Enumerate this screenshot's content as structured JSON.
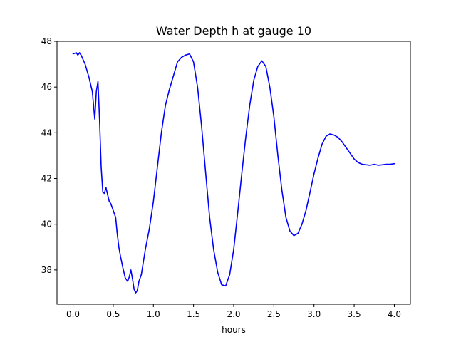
{
  "chart_data": {
    "type": "line",
    "title": "Water Depth h at gauge 10",
    "xlabel": "hours",
    "ylabel": "",
    "xlim": [
      -0.2,
      4.2
    ],
    "ylim": [
      36.5,
      48.0
    ],
    "xticks": [
      0.0,
      0.5,
      1.0,
      1.5,
      2.0,
      2.5,
      3.0,
      3.5,
      4.0
    ],
    "xtick_labels": [
      "0.0",
      "0.5",
      "1.0",
      "1.5",
      "2.0",
      "2.5",
      "3.0",
      "3.5",
      "4.0"
    ],
    "yticks": [
      38,
      40,
      42,
      44,
      46,
      48
    ],
    "ytick_labels": [
      "38",
      "40",
      "42",
      "44",
      "46",
      "48"
    ],
    "grid": false,
    "series": [
      {
        "color": "#0000ff",
        "x": [
          0.0,
          0.04,
          0.06,
          0.08,
          0.1,
          0.15,
          0.2,
          0.24,
          0.27,
          0.29,
          0.31,
          0.33,
          0.35,
          0.37,
          0.39,
          0.41,
          0.43,
          0.45,
          0.47,
          0.5,
          0.53,
          0.55,
          0.57,
          0.59,
          0.62,
          0.65,
          0.68,
          0.7,
          0.72,
          0.74,
          0.76,
          0.78,
          0.8,
          0.82,
          0.85,
          0.9,
          0.95,
          1.0,
          1.05,
          1.1,
          1.15,
          1.2,
          1.25,
          1.3,
          1.35,
          1.4,
          1.45,
          1.5,
          1.55,
          1.6,
          1.65,
          1.7,
          1.75,
          1.8,
          1.85,
          1.9,
          1.95,
          2.0,
          2.05,
          2.1,
          2.15,
          2.2,
          2.25,
          2.3,
          2.35,
          2.4,
          2.45,
          2.5,
          2.55,
          2.6,
          2.65,
          2.7,
          2.75,
          2.8,
          2.85,
          2.9,
          2.95,
          3.0,
          3.05,
          3.1,
          3.15,
          3.2,
          3.25,
          3.3,
          3.35,
          3.4,
          3.45,
          3.5,
          3.55,
          3.6,
          3.65,
          3.7,
          3.75,
          3.8,
          3.85,
          3.9,
          3.95,
          4.0
        ],
        "y": [
          47.45,
          47.5,
          47.4,
          47.5,
          47.4,
          47.0,
          46.4,
          45.8,
          44.6,
          45.8,
          46.25,
          44.6,
          42.5,
          41.4,
          41.35,
          41.6,
          41.3,
          41.0,
          40.9,
          40.6,
          40.3,
          39.6,
          39.0,
          38.6,
          38.1,
          37.65,
          37.5,
          37.7,
          38.0,
          37.6,
          37.15,
          37.0,
          37.1,
          37.5,
          37.8,
          38.9,
          39.8,
          41.0,
          42.5,
          44.0,
          45.2,
          45.9,
          46.5,
          47.1,
          47.3,
          47.4,
          47.45,
          47.1,
          46.0,
          44.3,
          42.3,
          40.3,
          38.9,
          37.9,
          37.35,
          37.3,
          37.8,
          38.9,
          40.5,
          42.2,
          43.8,
          45.2,
          46.3,
          46.9,
          47.15,
          46.9,
          46.0,
          44.7,
          43.0,
          41.5,
          40.3,
          39.7,
          39.5,
          39.6,
          40.0,
          40.6,
          41.4,
          42.2,
          42.9,
          43.5,
          43.85,
          43.95,
          43.9,
          43.8,
          43.6,
          43.35,
          43.1,
          42.85,
          42.7,
          42.62,
          42.6,
          42.58,
          42.62,
          42.58,
          42.6,
          42.62,
          42.62,
          42.65
        ]
      }
    ]
  }
}
